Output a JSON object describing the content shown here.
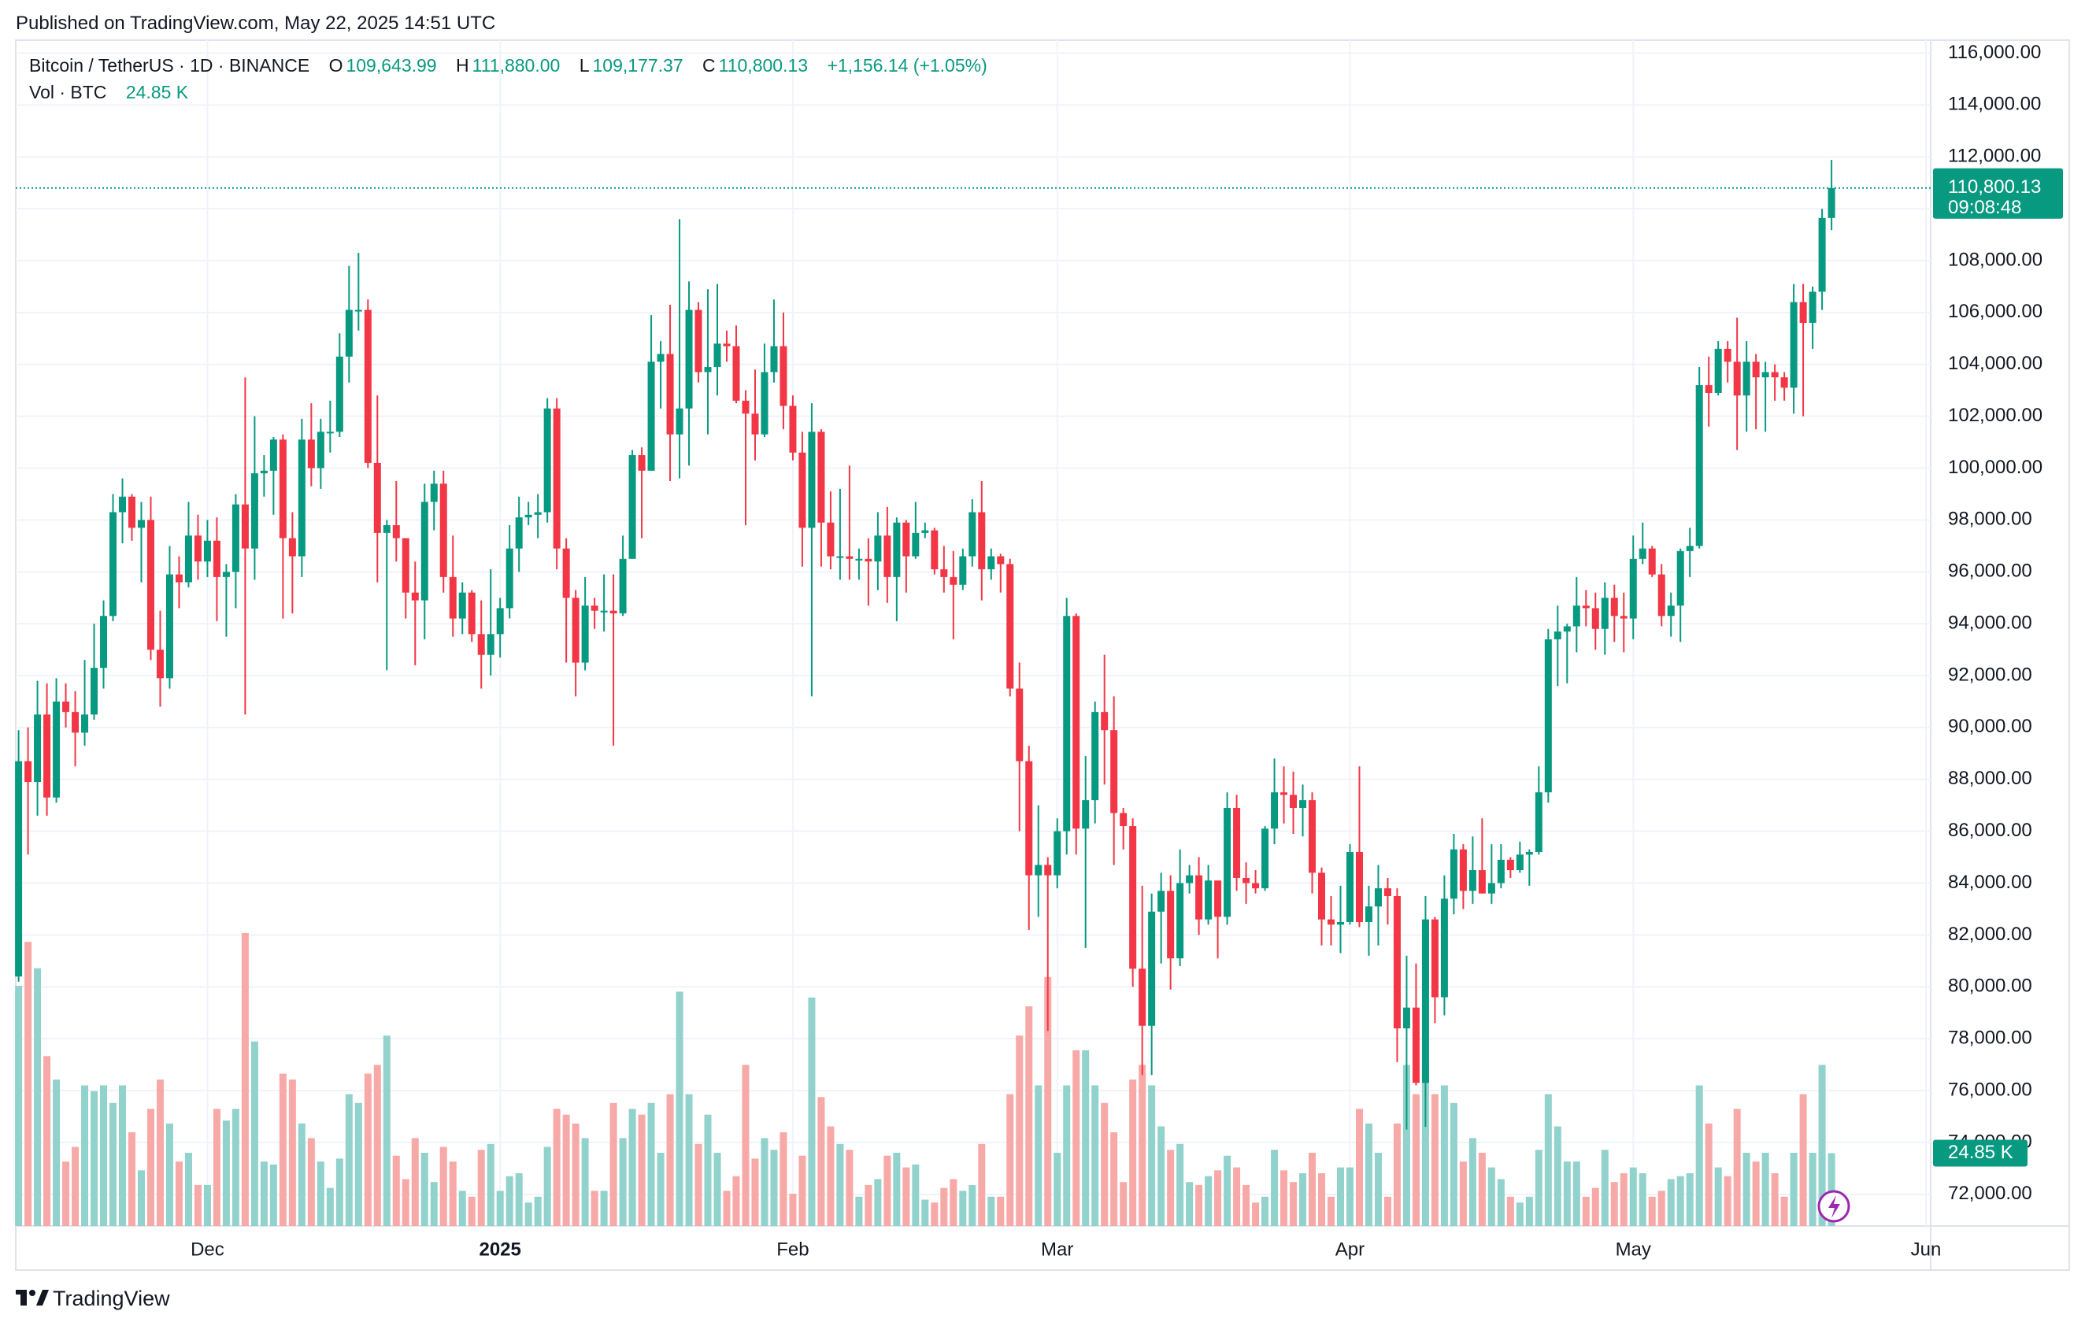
{
  "published": "Published on TradingView.com, May 22, 2025 14:51 UTC",
  "footer": "TradingView",
  "chart_data": {
    "type": "candlestick",
    "title": "Bitcoin / TetherUS · 1D · BINANCE",
    "legend_keys": [
      "O",
      "H",
      "L",
      "C"
    ],
    "legend": {
      "open": {
        "value": 109643.99,
        "label": "109,643.99"
      },
      "high": {
        "value": 111880,
        "label": "111,880.00"
      },
      "low": {
        "value": 109177.37,
        "label": "109,177.37"
      },
      "close": {
        "value": 110800.13,
        "label": "110,800.13"
      },
      "change": {
        "value": 1156.14,
        "label": "+1,156.14 (+1.05%)"
      }
    },
    "volume_title": "Vol · BTC",
    "volume_label": {
      "value": 24.85,
      "label": "24.85 K"
    },
    "last_price": {
      "value": 110800.13,
      "label": "110,800.13"
    },
    "countdown": "09:08:48",
    "up_color": "#089981",
    "down_color": "#f23645",
    "volume_up_color": "#92d2cc",
    "volume_down_color": "#f7a9a7",
    "grid": true,
    "xlim": [
      -0.3,
      202.5
    ],
    "ylim": [
      70780,
      116500
    ],
    "xticks": [
      {
        "value": 20,
        "label": "Dec"
      },
      {
        "value": 51,
        "label": "2025",
        "bold": true
      },
      {
        "value": 82,
        "label": "Feb"
      },
      {
        "value": 110,
        "label": "Mar"
      },
      {
        "value": 141,
        "label": "Apr"
      },
      {
        "value": 171,
        "label": "May"
      },
      {
        "value": 202,
        "label": "Jun"
      }
    ],
    "yticks": [
      {
        "value": 72000,
        "label": "72,000.00"
      },
      {
        "value": 74000,
        "label": "74,000.00"
      },
      {
        "value": 76000,
        "label": "76,000.00"
      },
      {
        "value": 78000,
        "label": "78,000.00"
      },
      {
        "value": 80000,
        "label": "80,000.00"
      },
      {
        "value": 82000,
        "label": "82,000.00"
      },
      {
        "value": 84000,
        "label": "84,000.00"
      },
      {
        "value": 86000,
        "label": "86,000.00"
      },
      {
        "value": 88000,
        "label": "88,000.00"
      },
      {
        "value": 90000,
        "label": "90,000.00"
      },
      {
        "value": 92000,
        "label": "92,000.00"
      },
      {
        "value": 94000,
        "label": "94,000.00"
      },
      {
        "value": 96000,
        "label": "96,000.00"
      },
      {
        "value": 98000,
        "label": "98,000.00"
      },
      {
        "value": 100000,
        "label": "100,000.00"
      },
      {
        "value": 102000,
        "label": "102,000.00"
      },
      {
        "value": 104000,
        "label": "104,000.00"
      },
      {
        "value": 106000,
        "label": "106,000.00"
      },
      {
        "value": 108000,
        "label": "108,000.00"
      },
      {
        "value": 110000,
        "label": "110,000.00"
      },
      {
        "value": 112000,
        "label": "112,000.00"
      },
      {
        "value": 114000,
        "label": "114,000.00"
      },
      {
        "value": 116000,
        "label": "116,000.00"
      }
    ],
    "open": [
      80400,
      88700,
      87900,
      90500,
      87300,
      91000,
      90600,
      89800,
      90500,
      92300,
      94300,
      98300,
      98900,
      97700,
      98000,
      93000,
      91900,
      95900,
      95600,
      97400,
      96400,
      97200,
      95800,
      96000,
      98600,
      96900,
      99800,
      99900,
      101100,
      97300,
      96600,
      101100,
      100000,
      101400,
      101400,
      104300,
      106100,
      106100,
      100200,
      97500,
      97800,
      97300,
      95200,
      94900,
      98700,
      99400,
      95800,
      94200,
      95200,
      93600,
      92800,
      93600,
      94600,
      96900,
      98100,
      98200,
      98300,
      102300,
      96900,
      95000,
      92500,
      94700,
      94500,
      94500,
      94400,
      96500,
      100500,
      99900,
      104100,
      104400,
      101300,
      102300,
      106100,
      103700,
      103900,
      104800,
      104700,
      102600,
      102100,
      101300,
      103700,
      104700,
      102400,
      100600,
      97700,
      101400,
      97900,
      96600,
      96600,
      96500,
      96500,
      96400,
      97400,
      95800,
      97900,
      96600,
      97500,
      97600,
      96100,
      95800,
      95500,
      96600,
      98300,
      96100,
      96600,
      96300,
      91500,
      88700,
      84300,
      84700,
      84300,
      86000,
      94300,
      86100,
      87200,
      90600,
      89900,
      86700,
      86200,
      80700,
      78500,
      82900,
      83700,
      81100,
      84000,
      84300,
      82600,
      84100,
      82700,
      86900,
      84200,
      84000,
      83800,
      86100,
      87500,
      87400,
      86900,
      87200,
      84400,
      82600,
      82400,
      82500,
      85200,
      82500,
      83100,
      83800,
      83500,
      78400,
      79200,
      76300,
      82600,
      79600,
      83400,
      85300,
      83700,
      84500,
      83600,
      84000,
      84900,
      84500,
      85100,
      85200,
      87500,
      93400,
      93700,
      93900,
      94700,
      94600,
      93800,
      95000,
      94300,
      94200,
      96500,
      96900,
      95900,
      94300,
      94700,
      96800,
      97000,
      103200,
      102900,
      104600,
      104100,
      102800,
      104100,
      103500,
      103700,
      103500,
      103100,
      106400,
      105600,
      106800,
      109643.99
    ],
    "high": [
      89900,
      90000,
      91800,
      91700,
      91900,
      91700,
      91400,
      92600,
      94000,
      94900,
      99000,
      99600,
      99000,
      98700,
      98900,
      94500,
      97000,
      96600,
      98700,
      98200,
      98000,
      98100,
      96300,
      99000,
      103500,
      102000,
      100500,
      101200,
      101300,
      98300,
      101900,
      102500,
      101900,
      102600,
      105200,
      107800,
      108300,
      106500,
      102800,
      98000,
      99500,
      97300,
      96400,
      99400,
      99900,
      99900,
      97400,
      95600,
      95300,
      94900,
      96100,
      95000,
      97800,
      98900,
      98700,
      99000,
      102700,
      102700,
      97300,
      95300,
      95800,
      95000,
      95900,
      95900,
      97400,
      100700,
      100800,
      105900,
      104900,
      106300,
      109600,
      107200,
      106400,
      106900,
      107100,
      105300,
      105500,
      103000,
      103800,
      104800,
      106500,
      106000,
      102800,
      101400,
      102500,
      101500,
      99100,
      99200,
      100100,
      96900,
      97300,
      98300,
      98500,
      98100,
      98000,
      98700,
      97900,
      97700,
      97000,
      96800,
      96900,
      98800,
      99500,
      96900,
      96700,
      96500,
      92500,
      89300,
      87000,
      85000,
      86500,
      95000,
      94400,
      88900,
      91000,
      92800,
      91200,
      86900,
      86500,
      83900,
      83600,
      84400,
      84300,
      85300,
      84700,
      85000,
      84700,
      84100,
      87500,
      87400,
      84800,
      84500,
      86200,
      88800,
      88500,
      88300,
      87800,
      87500,
      84600,
      83500,
      83900,
      85500,
      88500,
      83900,
      84700,
      84200,
      83800,
      81200,
      80900,
      83500,
      82700,
      84300,
      85900,
      85500,
      85800,
      86500,
      85500,
      85500,
      85000,
      85600,
      85300,
      88500,
      93800,
      94700,
      94000,
      95800,
      95300,
      95200,
      95600,
      95500,
      95200,
      97400,
      97900,
      97000,
      96300,
      95200,
      96900,
      97700,
      103900,
      104300,
      104900,
      104900,
      105800,
      104900,
      104400,
      104100,
      104000,
      103700,
      107100,
      107100,
      107000,
      110000,
      111880
    ],
    "low": [
      80200,
      85100,
      86600,
      86600,
      87100,
      90000,
      88500,
      89300,
      90300,
      91500,
      94100,
      97100,
      97200,
      95600,
      92600,
      90800,
      91500,
      94600,
      95400,
      95700,
      95800,
      94100,
      93500,
      94600,
      90500,
      95700,
      98900,
      98200,
      94200,
      94400,
      95800,
      99300,
      99200,
      100600,
      101200,
      103300,
      105300,
      100000,
      95600,
      92200,
      96400,
      94200,
      92400,
      93400,
      97600,
      95200,
      93500,
      93600,
      93300,
      91500,
      92000,
      92700,
      94200,
      96000,
      97800,
      97300,
      97900,
      96100,
      92500,
      91200,
      92200,
      93800,
      93700,
      89300,
      94300,
      96500,
      97300,
      99900,
      102300,
      99500,
      99600,
      100100,
      103300,
      101300,
      102800,
      104100,
      102500,
      97800,
      100300,
      101200,
      103300,
      101500,
      100300,
      96200,
      91200,
      96200,
      96100,
      95700,
      95700,
      95700,
      94700,
      95300,
      94800,
      94100,
      95200,
      96500,
      97300,
      95900,
      95200,
      93400,
      95300,
      96200,
      94900,
      95700,
      95200,
      91200,
      86000,
      82200,
      82700,
      78300,
      83800,
      85100,
      85100,
      81500,
      86300,
      87800,
      84700,
      85300,
      80000,
      76600,
      76600,
      80900,
      79900,
      80800,
      83600,
      82000,
      82400,
      81100,
      82400,
      83700,
      83200,
      83600,
      83700,
      85500,
      86300,
      85900,
      85800,
      83600,
      81600,
      81600,
      81300,
      82400,
      82300,
      81200,
      81600,
      82400,
      77100,
      74500,
      76200,
      74600,
      78600,
      78900,
      82800,
      83000,
      83200,
      83600,
      83200,
      83800,
      84200,
      84400,
      83900,
      85100,
      87100,
      91600,
      91700,
      92900,
      93900,
      93000,
      92800,
      93300,
      92900,
      93400,
      96300,
      95800,
      93900,
      93500,
      93300,
      95800,
      96900,
      101600,
      102800,
      103300,
      100700,
      101400,
      101500,
      101400,
      102600,
      102600,
      102100,
      102000,
      104600,
      106100,
      109177.37
    ],
    "close": [
      88700,
      87900,
      90500,
      87300,
      91000,
      90600,
      89800,
      90500,
      92300,
      94300,
      98300,
      98900,
      97700,
      98000,
      93000,
      91900,
      95900,
      95600,
      97400,
      96400,
      97200,
      95800,
      96000,
      98600,
      96900,
      99800,
      99900,
      101100,
      97300,
      96600,
      101100,
      100000,
      101400,
      101400,
      104300,
      106100,
      106100,
      100200,
      97500,
      97800,
      97300,
      95200,
      94900,
      98700,
      99400,
      95800,
      94200,
      95200,
      93600,
      92800,
      93600,
      94600,
      96900,
      98100,
      98200,
      98300,
      102300,
      96900,
      95000,
      92500,
      94700,
      94500,
      94500,
      94400,
      96500,
      100500,
      99900,
      104100,
      104400,
      101300,
      102300,
      106100,
      103700,
      103900,
      104800,
      104700,
      102600,
      102100,
      101300,
      103700,
      104700,
      102400,
      100600,
      97700,
      101400,
      97900,
      96600,
      96600,
      96500,
      96500,
      96400,
      97400,
      95800,
      97900,
      96600,
      97500,
      97600,
      96100,
      95800,
      95500,
      96600,
      98300,
      96100,
      96600,
      96300,
      91500,
      88700,
      84300,
      84700,
      84300,
      86000,
      94300,
      86100,
      87200,
      90600,
      89900,
      86700,
      86200,
      80700,
      78500,
      82900,
      83700,
      81100,
      84000,
      84300,
      82600,
      84100,
      82700,
      86900,
      84200,
      84000,
      83800,
      86100,
      87500,
      87400,
      86900,
      87200,
      84400,
      82600,
      82400,
      82500,
      85200,
      82500,
      83100,
      83800,
      83500,
      78400,
      79200,
      76300,
      82600,
      79600,
      83400,
      85300,
      83700,
      84500,
      83600,
      84000,
      84900,
      84500,
      85100,
      85200,
      87500,
      93400,
      93700,
      93900,
      94700,
      94600,
      93800,
      95000,
      94300,
      94200,
      96500,
      96900,
      95900,
      94300,
      94700,
      96800,
      97000,
      103200,
      102900,
      104600,
      104100,
      102800,
      104100,
      103500,
      103700,
      103500,
      103100,
      106400,
      105600,
      106800,
      109643.99,
      110800.13
    ],
    "volume": [
      82,
      97,
      88,
      58,
      50,
      22,
      27,
      48,
      46,
      48,
      42,
      48,
      32,
      19,
      40,
      50,
      35,
      22,
      25,
      14,
      14,
      40,
      36,
      40,
      100,
      63,
      22,
      21,
      52,
      50,
      35,
      30,
      22,
      13,
      23,
      45,
      42,
      52,
      55,
      65,
      24,
      16,
      30,
      25,
      15,
      27,
      22,
      12,
      10,
      26,
      28,
      12,
      17,
      18,
      8,
      10,
      27,
      40,
      38,
      35,
      30,
      12,
      12,
      42,
      30,
      40,
      38,
      42,
      25,
      45,
      80,
      45,
      28,
      38,
      25,
      12,
      17,
      55,
      23,
      30,
      26,
      32,
      11,
      24,
      78,
      44,
      34,
      28,
      26,
      10,
      14,
      16,
      24,
      25,
      20,
      21,
      9,
      8,
      13,
      16,
      12,
      14,
      28,
      10,
      10,
      45,
      65,
      75,
      48,
      85,
      25,
      48,
      60,
      60,
      48,
      42,
      32,
      15,
      50,
      55,
      48,
      34,
      26,
      28,
      15,
      14,
      17,
      19,
      24,
      20,
      14,
      8,
      10,
      26,
      19,
      15,
      18,
      25,
      18,
      10,
      20,
      20,
      40,
      35,
      25,
      10,
      35,
      55,
      45,
      55,
      45,
      48,
      42,
      22,
      30,
      25,
      20,
      16,
      10,
      8,
      10,
      26,
      45,
      34,
      22,
      22,
      10,
      13,
      26,
      15,
      18,
      20,
      18,
      10,
      12,
      16,
      17,
      18,
      48,
      35,
      20,
      17,
      40,
      25,
      22,
      25,
      18,
      10,
      25,
      45,
      25,
      55,
      24.85
    ]
  }
}
